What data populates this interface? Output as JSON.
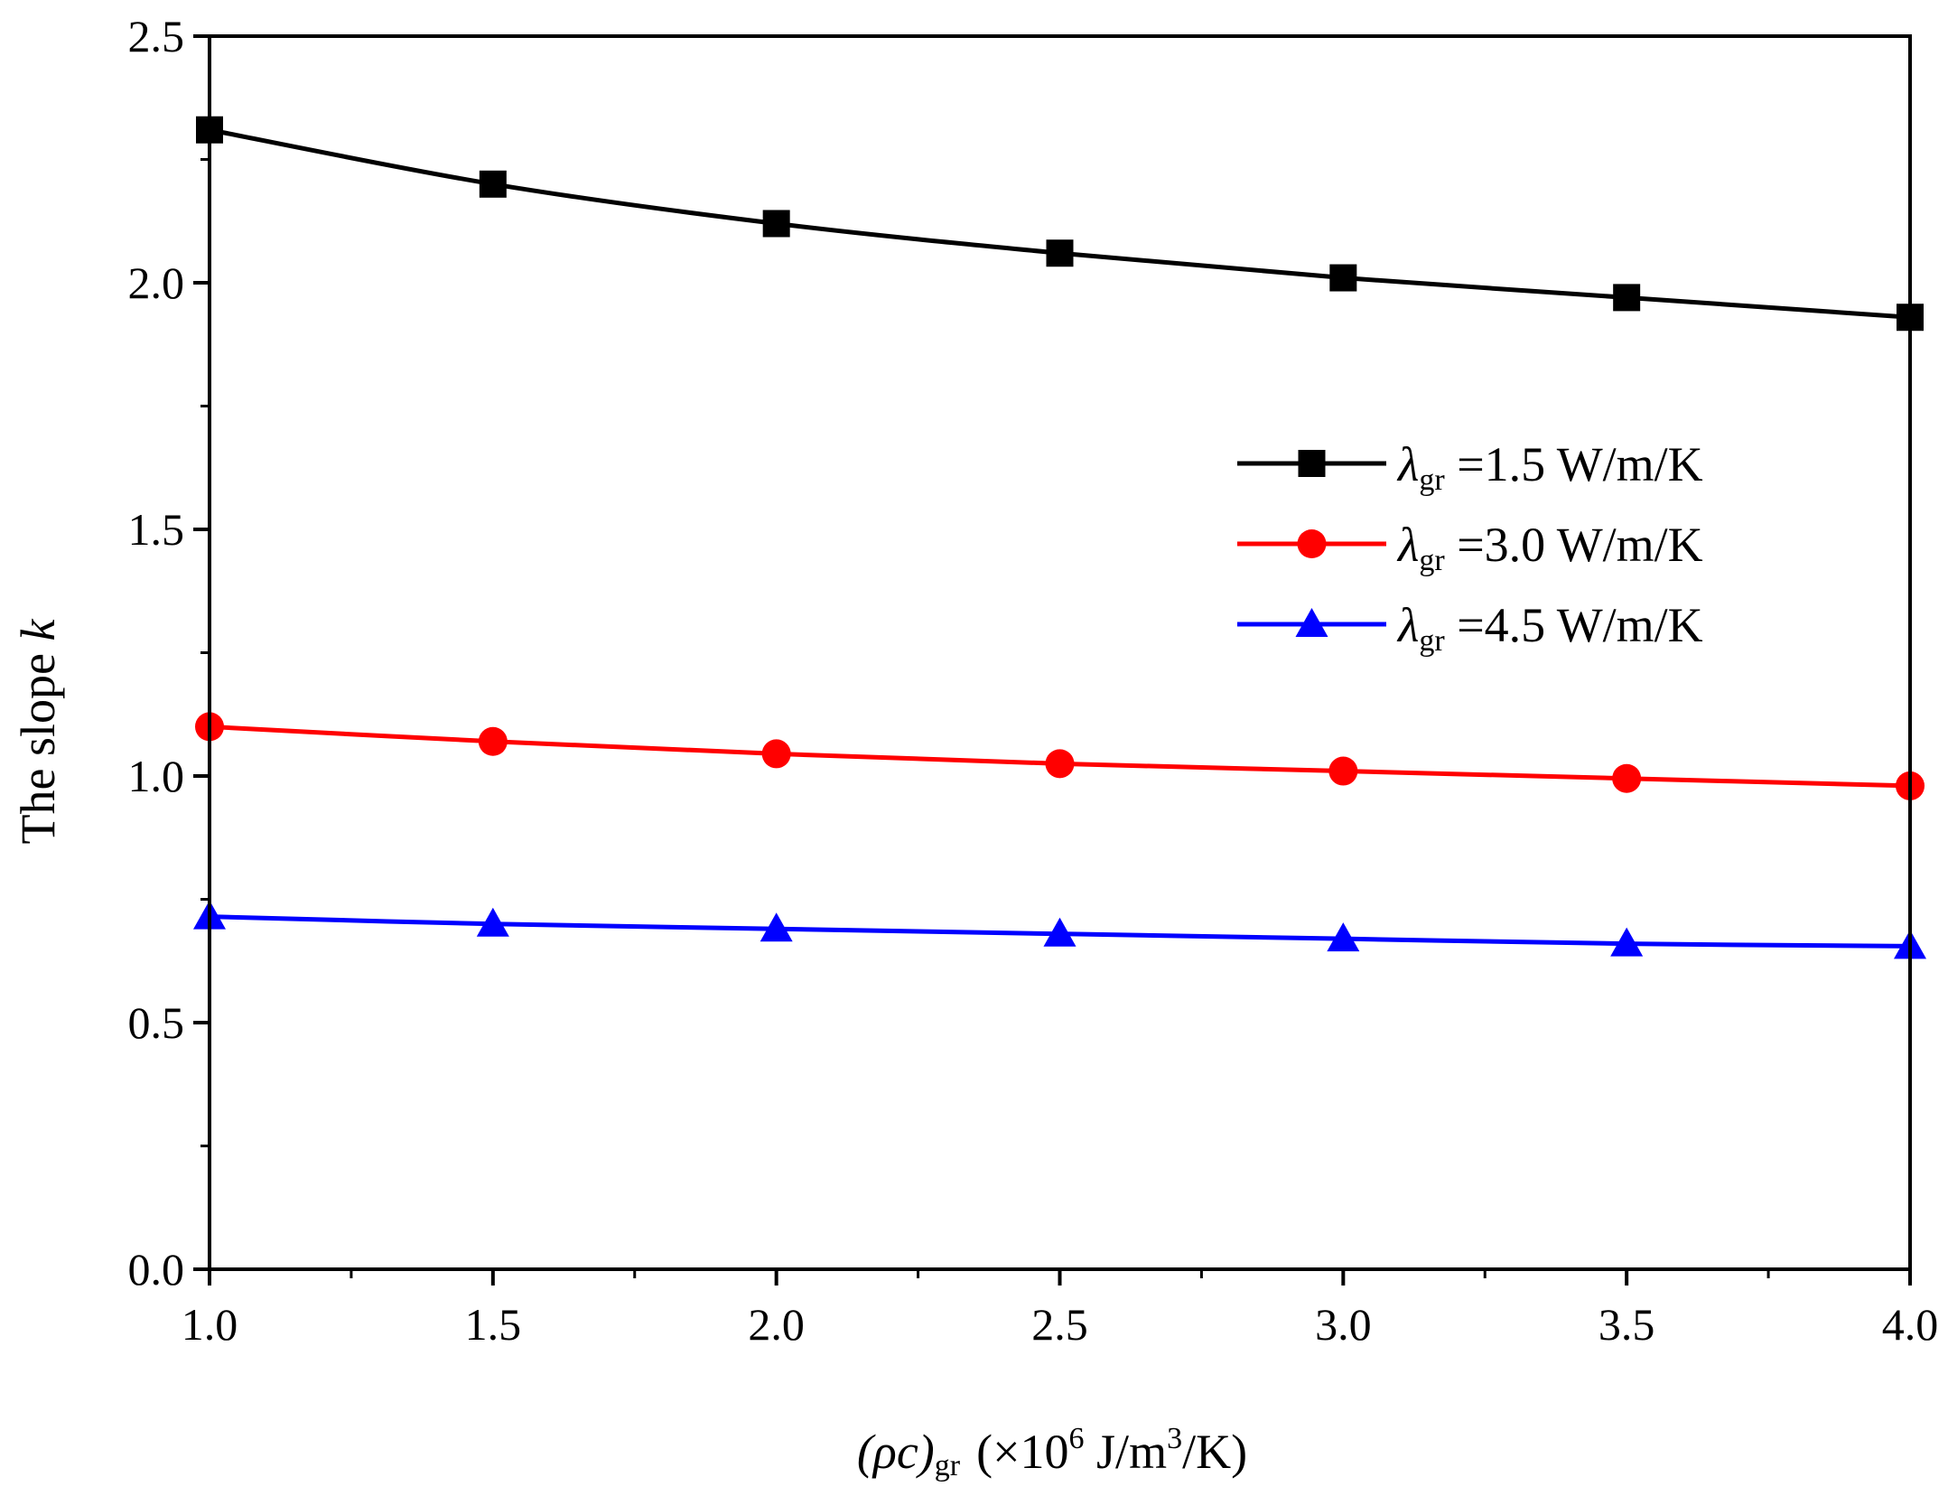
{
  "chart_data": {
    "type": "line",
    "x": [
      1.0,
      1.5,
      2.0,
      2.5,
      3.0,
      3.5,
      4.0
    ],
    "xlim": [
      1.0,
      4.0
    ],
    "ylim": [
      0.0,
      2.5
    ],
    "xticks": [
      "1.0",
      "1.5",
      "2.0",
      "2.5",
      "3.0",
      "3.5",
      "4.0"
    ],
    "yticks": [
      "0.0",
      "0.5",
      "1.0",
      "1.5",
      "2.0",
      "2.5"
    ],
    "xlabel": {
      "open": "(",
      "rho_c": "ρc",
      "close": ")",
      "sub": "gr",
      "units_pre": "(×10",
      "units_exp": "6",
      "units_mid": " J/m",
      "units_exp2": "3",
      "units_post": "/K)"
    },
    "ylabel": {
      "text": "The slope ",
      "var": "k"
    },
    "legend_position": "center-right",
    "series": [
      {
        "name": "λgr =1.5 W/m/K",
        "symbol": "λ",
        "sub": "gr",
        "value_text": " =1.5 W/m/K",
        "color": "#000000",
        "marker": "square",
        "values": [
          2.31,
          2.2,
          2.12,
          2.06,
          2.01,
          1.97,
          1.93
        ]
      },
      {
        "name": "λgr =3.0 W/m/K",
        "symbol": "λ",
        "sub": "gr",
        "value_text": " =3.0 W/m/K",
        "color": "#ff0000",
        "marker": "circle",
        "values": [
          1.1,
          1.07,
          1.045,
          1.025,
          1.01,
          0.995,
          0.98
        ]
      },
      {
        "name": "λgr =4.5 W/m/K",
        "symbol": "λ",
        "sub": "gr",
        "value_text": " =4.5 W/m/K",
        "color": "#0000ff",
        "marker": "triangle",
        "values": [
          0.715,
          0.7,
          0.69,
          0.68,
          0.67,
          0.66,
          0.655
        ]
      }
    ]
  }
}
